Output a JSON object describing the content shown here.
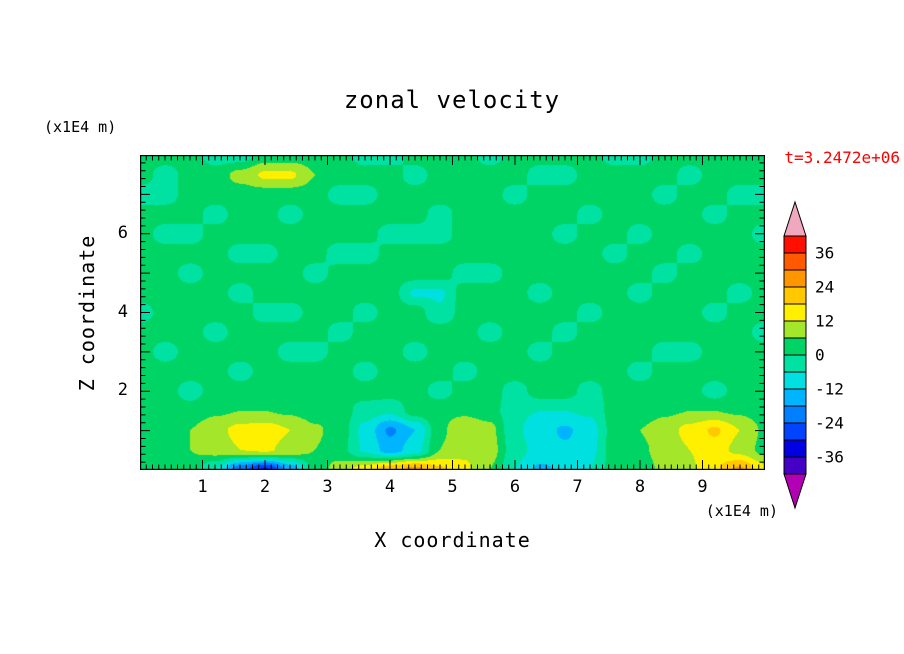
{
  "annotations": {
    "timestamp": "t=3.2472e+06",
    "timestamp_color": "#ff0000"
  },
  "chart_data": {
    "type": "filled_contour",
    "title": "zonal velocity",
    "xlabel": "X coordinate",
    "ylabel": "Z coordinate",
    "x_unit": "(x1E4 m)",
    "z_unit": "(x1E4 m)",
    "x_range": [
      0,
      10
    ],
    "z_range": [
      0,
      8
    ],
    "x_tick_labels": [
      1,
      2,
      3,
      4,
      5,
      6,
      7,
      8,
      9
    ],
    "z_tick_labels": [
      2,
      4,
      6
    ],
    "x_minor_step": 0.1,
    "z_minor_step": 0.2,
    "grid": "off",
    "colorbar": {
      "label_values": [
        36,
        24,
        12,
        0,
        -12,
        -24,
        -36
      ],
      "level_min": -42,
      "level_step": 6,
      "level_max": 42,
      "colors_low_to_high": [
        "#4400C4",
        "#0000E0",
        "#0044FF",
        "#0080FF",
        "#00B4FF",
        "#00E0E0",
        "#00E2A2",
        "#00D465",
        "#A4E62A",
        "#FFF000",
        "#FFC800",
        "#FF9600",
        "#FF5A00",
        "#FF0F00"
      ],
      "under_color": "#B400B4",
      "over_color": "#F0A8BE"
    },
    "field": {
      "x_start": 0,
      "x_end": 10,
      "z_start": 8,
      "z_end": 0,
      "note": "rows ordered top (z=8) to bottom (z=0), dz=0.5; columns x=0..10, dx=0.4; values in same units as colorbar",
      "values": [
        [
          3,
          3,
          3,
          -3,
          -3,
          3,
          3,
          3,
          3,
          -3,
          -3,
          3,
          3,
          3,
          -3,
          3,
          3,
          3,
          3,
          -3,
          -3,
          3,
          3,
          3,
          3,
          3
        ],
        [
          3,
          -3,
          3,
          3,
          8,
          13,
          13,
          6,
          3,
          3,
          3,
          -3,
          3,
          3,
          3,
          3,
          -3,
          -3,
          3,
          3,
          3,
          3,
          -3,
          3,
          3,
          3
        ],
        [
          -3,
          -3,
          3,
          3,
          3,
          3,
          3,
          3,
          -3,
          -3,
          3,
          3,
          3,
          3,
          3,
          -3,
          3,
          3,
          3,
          3,
          3,
          -3,
          3,
          3,
          -3,
          -3
        ],
        [
          3,
          3,
          3,
          -3,
          3,
          3,
          -3,
          3,
          3,
          3,
          3,
          3,
          -3,
          3,
          3,
          3,
          3,
          3,
          -3,
          3,
          3,
          3,
          3,
          -3,
          3,
          3
        ],
        [
          3,
          -3,
          -3,
          3,
          3,
          3,
          3,
          3,
          3,
          3,
          -3,
          -3,
          -3,
          3,
          3,
          3,
          3,
          -3,
          3,
          3,
          -3,
          3,
          3,
          3,
          3,
          -3
        ],
        [
          3,
          3,
          3,
          3,
          -3,
          -3,
          3,
          3,
          -4,
          -4,
          3,
          3,
          3,
          3,
          3,
          3,
          3,
          3,
          3,
          -3,
          3,
          3,
          -3,
          3,
          3,
          3
        ],
        [
          3,
          3,
          -3,
          3,
          3,
          3,
          3,
          -3,
          3,
          3,
          3,
          3,
          3,
          -3,
          -3,
          3,
          3,
          3,
          3,
          3,
          3,
          -3,
          3,
          3,
          3,
          3
        ],
        [
          3,
          3,
          3,
          3,
          -3,
          3,
          3,
          3,
          3,
          3,
          3,
          -7,
          -7,
          3,
          3,
          3,
          -3,
          3,
          3,
          3,
          -3,
          3,
          3,
          3,
          -3,
          3
        ],
        [
          -3,
          3,
          3,
          3,
          3,
          -3,
          -3,
          3,
          3,
          -3,
          3,
          3,
          -5,
          3,
          3,
          3,
          3,
          3,
          -3,
          3,
          3,
          3,
          3,
          -3,
          3,
          3
        ],
        [
          3,
          3,
          3,
          -3,
          3,
          3,
          3,
          3,
          -3,
          3,
          3,
          3,
          3,
          3,
          -3,
          3,
          3,
          -3,
          3,
          3,
          3,
          3,
          3,
          3,
          3,
          -3
        ],
        [
          3,
          -3,
          3,
          3,
          3,
          3,
          -3,
          -3,
          3,
          3,
          3,
          -3,
          3,
          3,
          3,
          3,
          -3,
          3,
          3,
          3,
          3,
          -3,
          -3,
          3,
          3,
          3
        ],
        [
          3,
          3,
          3,
          3,
          -3,
          3,
          3,
          3,
          3,
          -3,
          3,
          3,
          3,
          -3,
          3,
          3,
          3,
          3,
          3,
          3,
          -3,
          3,
          3,
          3,
          3,
          3
        ],
        [
          3,
          3,
          -3,
          3,
          3,
          3,
          3,
          3,
          3,
          3,
          3,
          3,
          -3,
          3,
          3,
          -3,
          3,
          3,
          -3,
          3,
          3,
          3,
          3,
          -3,
          3,
          3
        ],
        [
          3,
          3,
          3,
          5,
          6,
          6,
          5,
          3,
          3,
          -3,
          -5,
          3,
          5,
          5,
          3,
          -5,
          -6,
          -6,
          -5,
          3,
          3,
          5,
          6,
          6,
          5,
          3
        ],
        [
          3,
          3,
          6,
          10,
          14,
          15,
          12,
          7,
          3,
          -8,
          -19,
          -12,
          5,
          10,
          8,
          -5,
          -9,
          -13,
          -9,
          3,
          6,
          9,
          14,
          19,
          12,
          5
        ],
        [
          3,
          4,
          6,
          9,
          12,
          13,
          10,
          6,
          2,
          -7,
          -15,
          -9,
          6,
          11,
          9,
          -4,
          -8,
          -11,
          -8,
          3,
          5,
          8,
          12,
          15,
          10,
          4
        ],
        [
          3,
          3,
          4,
          -6,
          -22,
          -31,
          -16,
          2,
          9,
          15,
          22,
          26,
          19,
          13,
          6,
          -6,
          -13,
          -11,
          -6,
          3,
          4,
          7,
          11,
          17,
          25,
          14
        ]
      ]
    }
  }
}
